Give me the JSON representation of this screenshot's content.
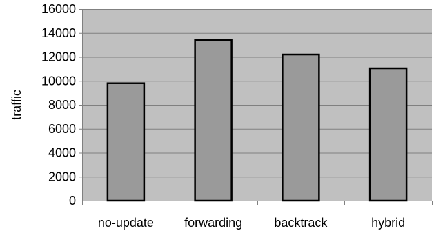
{
  "chart_data": {
    "type": "bar",
    "title": "",
    "xlabel": "",
    "ylabel": "traffic",
    "categories": [
      "no-update",
      "forwarding",
      "backtrack",
      "hybrid"
    ],
    "values": [
      9800,
      13400,
      12200,
      11050
    ],
    "ylim": [
      0,
      16000
    ],
    "yticks": [
      0,
      2000,
      4000,
      6000,
      8000,
      10000,
      12000,
      14000,
      16000
    ],
    "ytick_labels": [
      "0",
      "2000",
      "4000",
      "6000",
      "8000",
      "10000",
      "12000",
      "14000",
      "16000"
    ],
    "grid": true,
    "legend": "none",
    "colors": {
      "plot_background": "#c0c0c0",
      "bar_fill": "#9a9a9a",
      "bar_stroke": "#000000",
      "gridline": "#808080",
      "axis": "#808080"
    }
  }
}
